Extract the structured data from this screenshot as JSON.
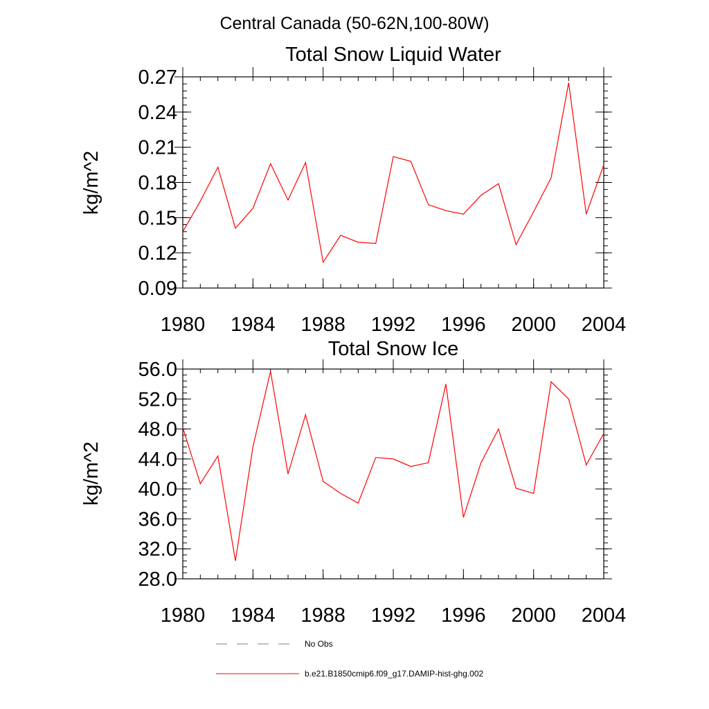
{
  "suptitle": "Central Canada (50-62N,100-80W)",
  "chart_data": [
    {
      "type": "line",
      "title": "Total Snow Liquid Water",
      "xlabel": "",
      "ylabel": "kg/m^2",
      "xlim": [
        1980,
        2004
      ],
      "ylim": [
        0.09,
        0.27
      ],
      "x_ticks": [
        "1980",
        "1984",
        "1988",
        "1992",
        "1996",
        "2000",
        "2004"
      ],
      "y_ticks": [
        "0.09",
        "0.12",
        "0.15",
        "0.18",
        "0.21",
        "0.24",
        "0.27"
      ],
      "grid": false,
      "x": [
        1980,
        1981,
        1982,
        1983,
        1984,
        1985,
        1986,
        1987,
        1988,
        1989,
        1990,
        1991,
        1992,
        1993,
        1994,
        1995,
        1996,
        1997,
        1998,
        1999,
        2000,
        2001,
        2002,
        2003,
        2004
      ],
      "series": [
        {
          "name": "b.e21.B1850cmip6.f09_g17.DAMIP-hist-ghg.002",
          "color": "#ff0000",
          "values": [
            0.138,
            0.164,
            0.193,
            0.141,
            0.158,
            0.196,
            0.165,
            0.197,
            0.112,
            0.135,
            0.129,
            0.128,
            0.202,
            0.198,
            0.161,
            0.156,
            0.153,
            0.169,
            0.179,
            0.127,
            0.155,
            0.184,
            0.265,
            0.153,
            0.195
          ]
        }
      ]
    },
    {
      "type": "line",
      "title": "Total Snow Ice",
      "xlabel": "",
      "ylabel": "kg/m^2",
      "xlim": [
        1980,
        2004
      ],
      "ylim": [
        28.0,
        56.0
      ],
      "x_ticks": [
        "1980",
        "1984",
        "1988",
        "1992",
        "1996",
        "2000",
        "2004"
      ],
      "y_ticks": [
        "28.0",
        "32.0",
        "36.0",
        "40.0",
        "44.0",
        "48.0",
        "52.0",
        "56.0"
      ],
      "grid": false,
      "x": [
        1980,
        1981,
        1982,
        1983,
        1984,
        1985,
        1986,
        1987,
        1988,
        1989,
        1990,
        1991,
        1992,
        1993,
        1994,
        1995,
        1996,
        1997,
        1998,
        1999,
        2000,
        2001,
        2002,
        2003,
        2004
      ],
      "series": [
        {
          "name": "b.e21.B1850cmip6.f09_g17.DAMIP-hist-ghg.002",
          "color": "#ff0000",
          "values": [
            48.2,
            40.7,
            44.4,
            30.4,
            45.6,
            55.7,
            42.0,
            49.9,
            41.0,
            39.4,
            38.1,
            44.2,
            44.0,
            43.0,
            43.5,
            54.0,
            36.2,
            43.5,
            48.0,
            40.1,
            39.4,
            54.3,
            52.0,
            43.2,
            47.4
          ]
        }
      ]
    }
  ],
  "legend": {
    "placement": "bottom",
    "items": [
      {
        "label": "No Obs",
        "style": "dashed",
        "color": "#6f7fa0"
      },
      {
        "label": "b.e21.B1850cmip6.f09_g17.DAMIP-hist-ghg.002",
        "style": "solid",
        "color": "#ff0000"
      }
    ]
  }
}
